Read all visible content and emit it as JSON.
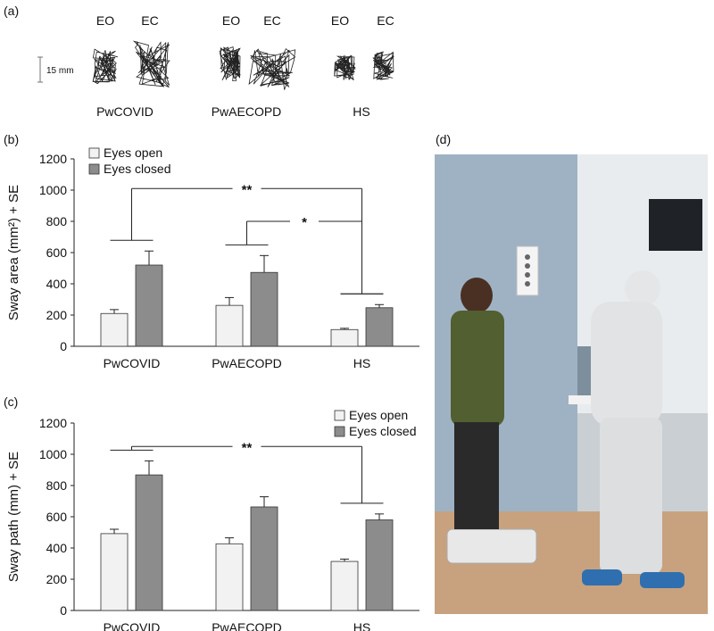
{
  "panel_labels": {
    "a": "(a)",
    "b": "(b)",
    "c": "(c)",
    "d": "(d)"
  },
  "traces": {
    "scale_label": "15 mm",
    "condition_labels": [
      "EO",
      "EC"
    ],
    "groups": [
      "PwCOVID",
      "PwAECOPD",
      "HS"
    ]
  },
  "legend": {
    "open": "Eyes open",
    "closed": "Eyes closed"
  },
  "colors": {
    "open": "#f2f2f2",
    "closed": "#8c8c8c",
    "stroke": "#333333"
  },
  "chart_data": [
    {
      "type": "bar",
      "ylabel": "Sway area (mm²) + SE",
      "categories": [
        "PwCOVID",
        "PwAECOPD",
        "HS"
      ],
      "yticks": [
        0,
        200,
        400,
        600,
        800,
        1000,
        1200
      ],
      "ylim": [
        0,
        1200
      ],
      "series": [
        {
          "name": "Eyes open",
          "values": [
            210,
            262,
            107
          ],
          "se": [
            25,
            50,
            8
          ]
        },
        {
          "name": "Eyes closed",
          "values": [
            520,
            473,
            247
          ],
          "se": [
            90,
            108,
            20
          ]
        }
      ],
      "legend_position": "top-left",
      "significance": [
        {
          "label": "**",
          "from": "PwCOVID",
          "to": "HS",
          "y": 1010
        },
        {
          "label": "*",
          "from": "PwAECOPD",
          "to": "HS",
          "y": 800
        }
      ]
    },
    {
      "type": "bar",
      "ylabel": "Sway path (mm) + SE",
      "categories": [
        "PwCOVID",
        "PwAECOPD",
        "HS"
      ],
      "yticks": [
        0,
        200,
        400,
        600,
        800,
        1000,
        1200
      ],
      "ylim": [
        0,
        1200
      ],
      "series": [
        {
          "name": "Eyes open",
          "values": [
            492,
            427,
            314
          ],
          "se": [
            28,
            38,
            15
          ]
        },
        {
          "name": "Eyes closed",
          "values": [
            868,
            663,
            580
          ],
          "se": [
            90,
            65,
            38
          ]
        }
      ],
      "legend_position": "top-right",
      "significance": [
        {
          "label": "**",
          "from": "PwCOVID",
          "to": "HS",
          "y": 1050
        }
      ]
    }
  ]
}
